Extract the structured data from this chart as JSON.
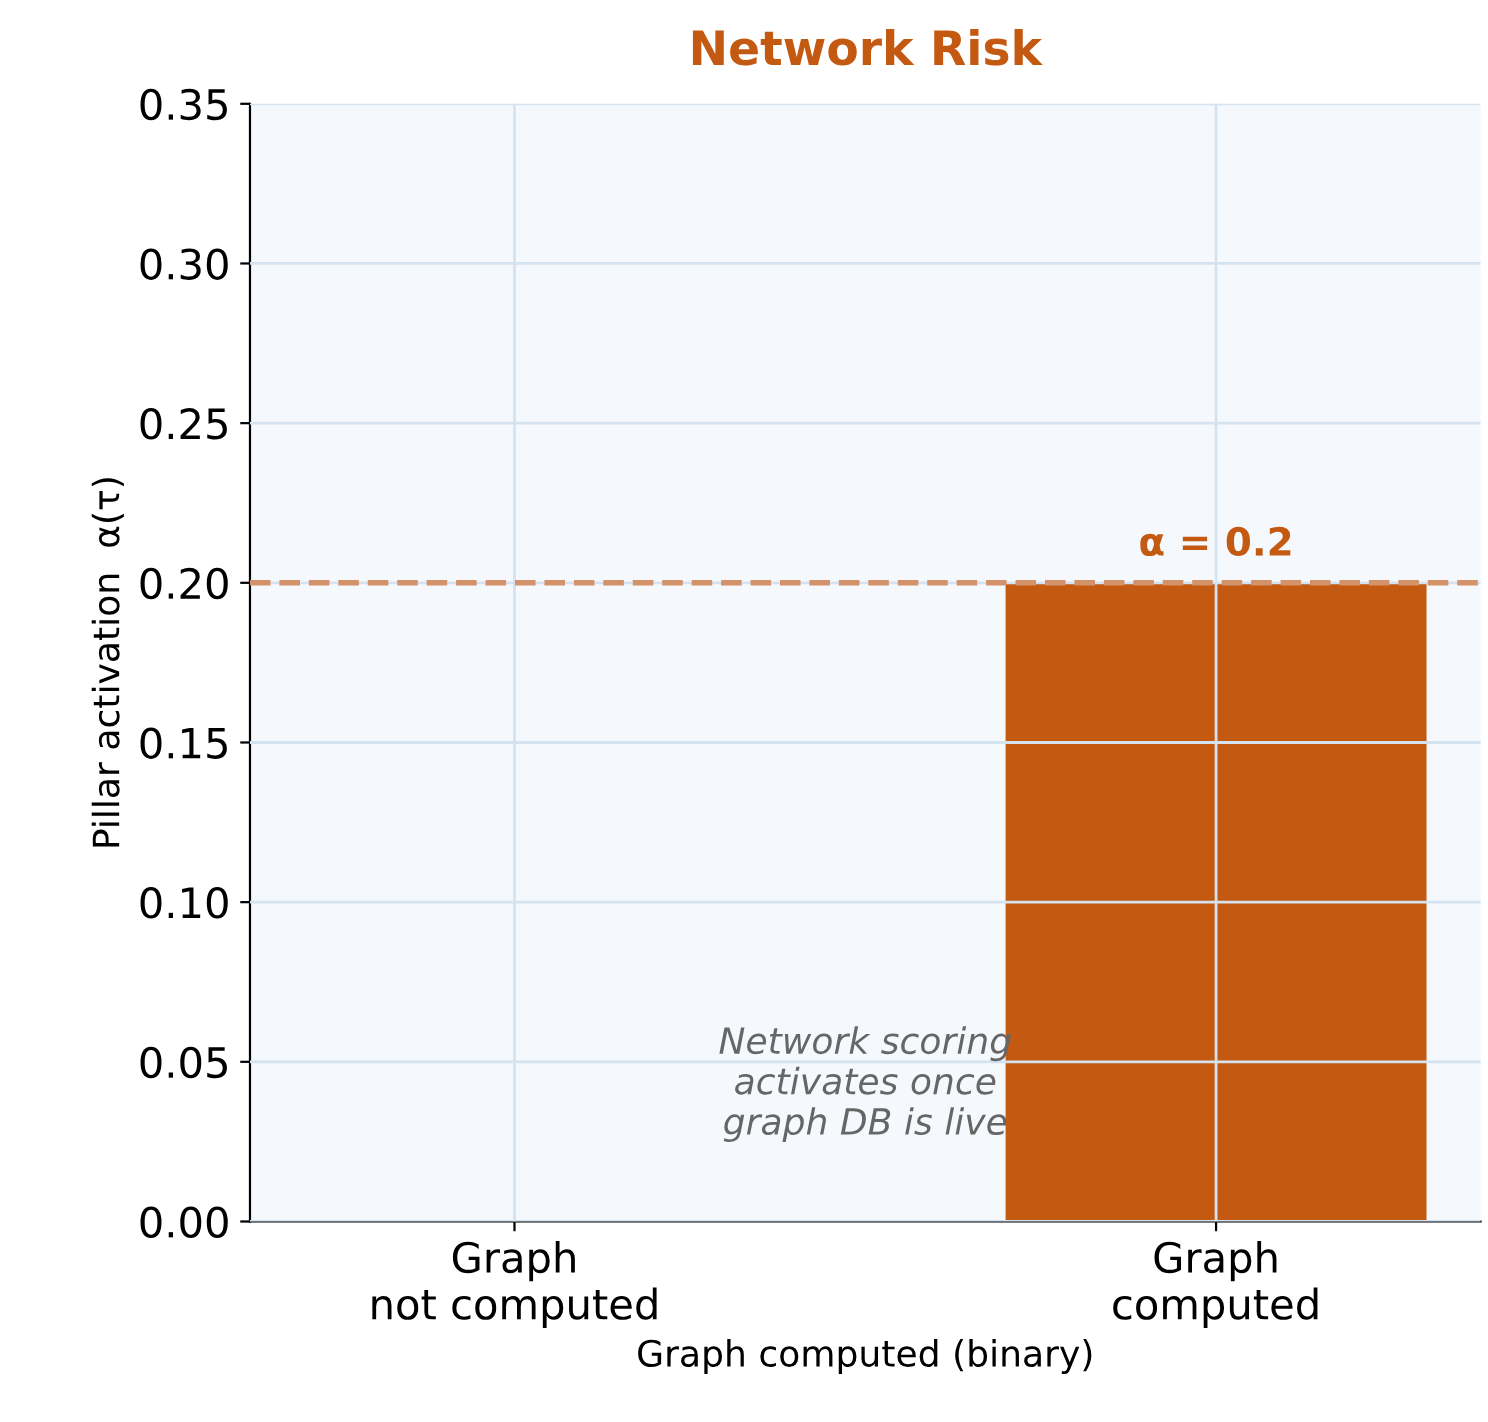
{
  "chart_data": {
    "type": "bar",
    "title": "Network Risk",
    "xlabel": "Graph computed (binary)",
    "ylabel": "Pillar activation  α(τ)",
    "categories": [
      "Graph\nnot computed",
      "Graph\ncomputed"
    ],
    "values": [
      0,
      0.2
    ],
    "color": "#c45911",
    "ylim": [
      0,
      0.35
    ],
    "yticks": [
      {
        "value": 0,
        "label": "0.00"
      },
      {
        "value": 0.05,
        "label": "0.05"
      },
      {
        "value": 0.1,
        "label": "0.10"
      },
      {
        "value": 0.15,
        "label": "0.15"
      },
      {
        "value": 0.2,
        "label": "0.20"
      },
      {
        "value": 0.25,
        "label": "0.25"
      },
      {
        "value": 0.3,
        "label": "0.30"
      },
      {
        "value": 0.35,
        "label": "0.35"
      }
    ],
    "grid": true,
    "ref_lines": [
      {
        "axis": "y",
        "value": 0.2,
        "label": "α = 0.2",
        "color": "#d4926a",
        "line_style": "dashed"
      }
    ],
    "annotations": [
      "Network scoring\nactivates once\ngraph DB is live"
    ]
  }
}
